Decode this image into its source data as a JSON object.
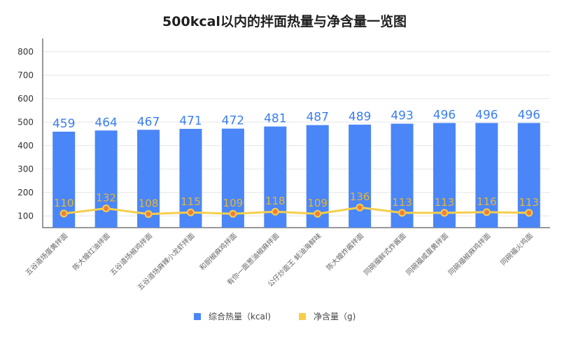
{
  "chart_data": {
    "type": "bar",
    "title": "500kcal以内的拌面热量与净含量一览图",
    "categories": [
      "五谷道场蛋黄拌面",
      "陈大嫂红油拌面",
      "五谷道场椒鸡拌面",
      "五谷道场麻辣小龙虾拌面",
      "和厨椒麻鸡拌面",
      "有你一面葱油椒麻拌面",
      "公仔炒面王 蚝油海鲜味",
      "陈大嫂炸酱拌面",
      "同碗福鲜式炸酱面",
      "同碗福咸蛋黄拌面",
      "同碗福椒麻鸡拌面",
      "同碗福火鸡面"
    ],
    "series": [
      {
        "name": "综合热量（kcal)",
        "type": "bar",
        "color": "#4a86f7",
        "values": [
          459,
          464,
          467,
          471,
          472,
          481,
          487,
          489,
          493,
          496,
          496,
          496
        ]
      },
      {
        "name": "净含量（g)",
        "type": "line",
        "color": "#f5cf4a",
        "values": [
          110,
          132,
          108,
          115,
          109,
          118,
          109,
          136,
          113,
          113,
          116,
          113
        ]
      }
    ],
    "ylim": [
      50,
      850
    ],
    "yticks": [
      100,
      200,
      300,
      400,
      500,
      600,
      700,
      800
    ],
    "grid": true,
    "legend_position": "bottom"
  }
}
